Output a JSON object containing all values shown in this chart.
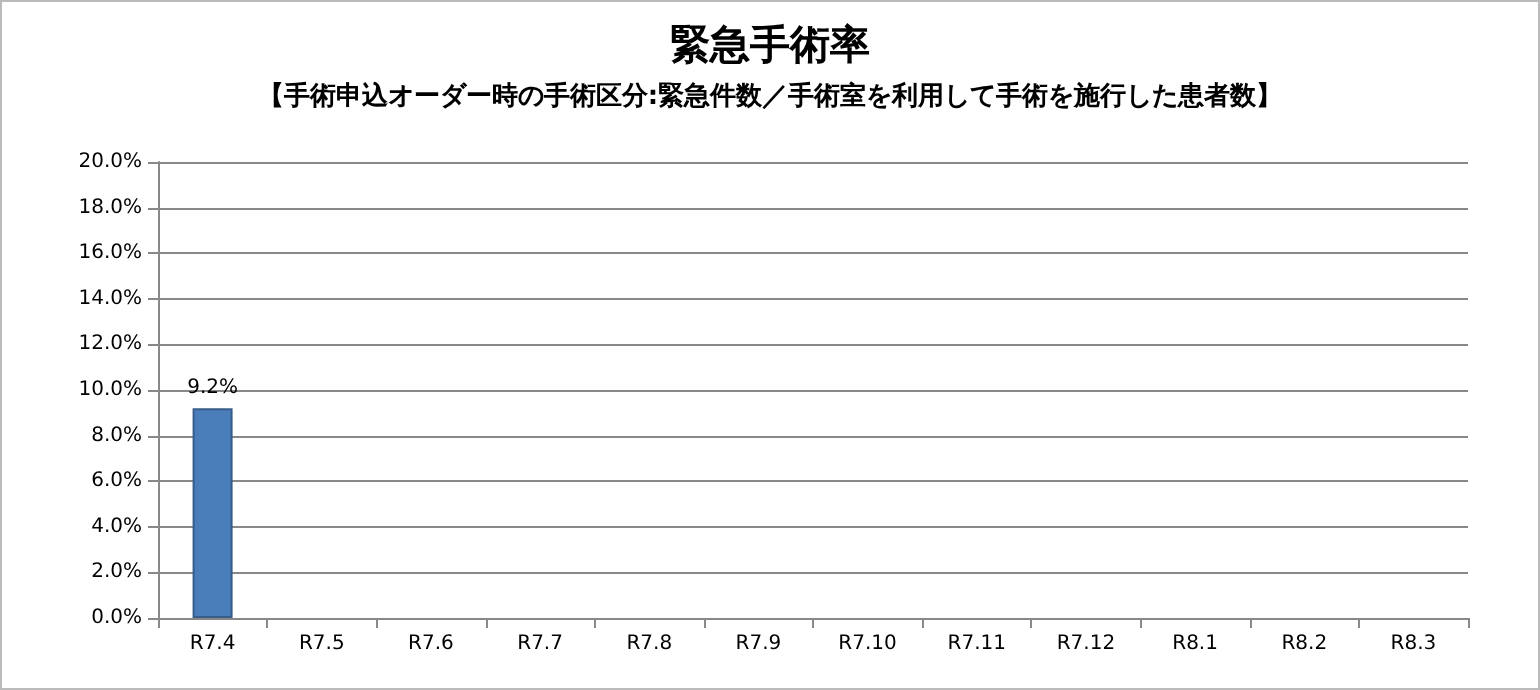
{
  "chart_data": {
    "type": "bar",
    "title": "緊急手術率",
    "subtitle": "【手術申込オーダー時の手術区分:緊急件数／手術室を利用して手術を施行した患者数】",
    "categories": [
      "R7.4",
      "R7.5",
      "R7.6",
      "R7.7",
      "R7.8",
      "R7.9",
      "R7.10",
      "R7.11",
      "R7.12",
      "R8.1",
      "R8.2",
      "R8.3"
    ],
    "values": [
      9.2,
      null,
      null,
      null,
      null,
      null,
      null,
      null,
      null,
      null,
      null,
      null
    ],
    "value_labels": [
      "9.2%",
      null,
      null,
      null,
      null,
      null,
      null,
      null,
      null,
      null,
      null,
      null
    ],
    "color": "#4a7ebb",
    "ylim": [
      0,
      20
    ],
    "yticks": [
      {
        "value": 0,
        "label": "0.0%"
      },
      {
        "value": 2,
        "label": "2.0%"
      },
      {
        "value": 4,
        "label": "4.0%"
      },
      {
        "value": 6,
        "label": "6.0%"
      },
      {
        "value": 8,
        "label": "8.0%"
      },
      {
        "value": 10,
        "label": "10.0%"
      },
      {
        "value": 12,
        "label": "12.0%"
      },
      {
        "value": 14,
        "label": "14.0%"
      },
      {
        "value": 16,
        "label": "16.0%"
      },
      {
        "value": 18,
        "label": "18.0%"
      },
      {
        "value": 20,
        "label": "20.0%"
      }
    ],
    "grid": true
  }
}
